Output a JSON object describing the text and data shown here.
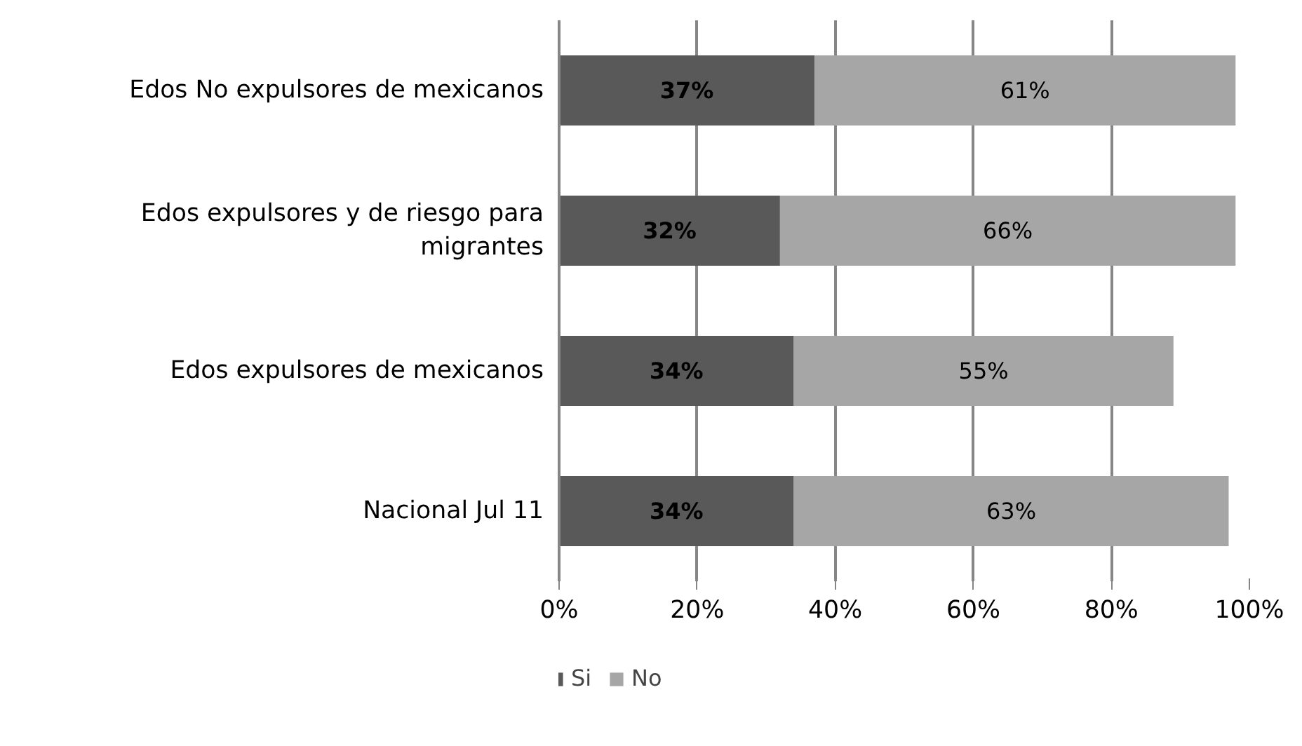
{
  "chart_data": {
    "type": "bar",
    "orientation": "horizontal",
    "stacked": true,
    "grid": "x",
    "legend": "bottom",
    "categories": [
      "Edos No expulsores de mexicanos",
      "Edos expulsores y de riesgo para migrantes",
      "Edos expulsores de mexicanos",
      "Nacional Jul 11"
    ],
    "series": [
      {
        "name": "Si",
        "color": "#595959",
        "values": [
          37,
          32,
          34,
          34
        ],
        "value_labels": [
          "37%",
          "32%",
          "34%",
          "34%"
        ]
      },
      {
        "name": "No",
        "color": "#a6a6a6",
        "values": [
          61,
          66,
          55,
          63
        ],
        "value_labels": [
          "61%",
          "66%",
          "55%",
          "63%"
        ]
      }
    ],
    "xlim": [
      0,
      100
    ],
    "xticks": [
      {
        "value": 0,
        "label": "0%"
      },
      {
        "value": 20,
        "label": "20%"
      },
      {
        "value": 40,
        "label": "40%"
      },
      {
        "value": 60,
        "label": "60%"
      },
      {
        "value": 80,
        "label": "80%"
      },
      {
        "value": 100,
        "label": "100%"
      }
    ]
  }
}
